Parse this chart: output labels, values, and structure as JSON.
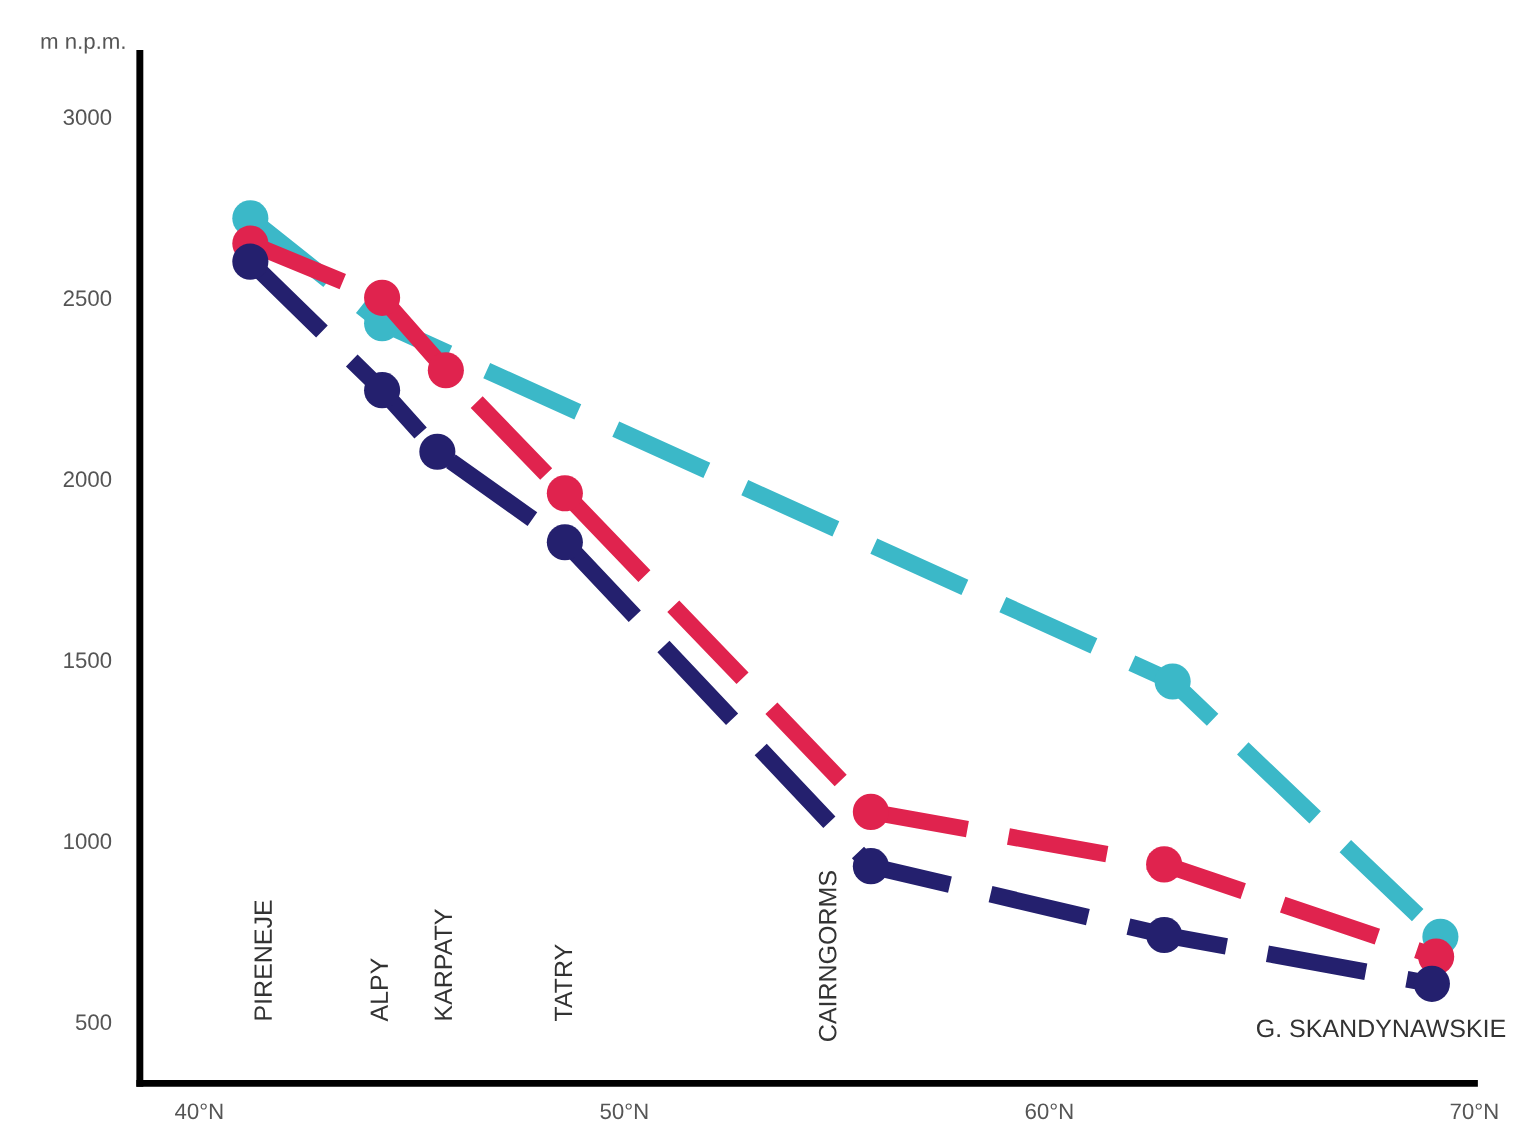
{
  "chart_data": {
    "type": "line",
    "ylabel": "m n.p.m.",
    "xlim": [
      38.6,
      70
    ],
    "xticks": [
      {
        "value": 40,
        "label": "40°N"
      },
      {
        "value": 50,
        "label": "50°N"
      },
      {
        "value": 60,
        "label": "60°N"
      },
      {
        "value": 70,
        "label": "70°N"
      }
    ],
    "ylim": [
      330,
      3175
    ],
    "yticks": [
      500,
      1000,
      1500,
      2000,
      2500,
      3000
    ],
    "grid": false,
    "marker": "circle",
    "line_style": "dashed",
    "series": [
      {
        "color": "#3bb8c8",
        "x": [
          41.2,
          44.3,
          62.9,
          69.2
        ],
        "values": [
          2720,
          2430,
          1440,
          735
        ]
      },
      {
        "color": "#e0234e",
        "x": [
          41.2,
          44.3,
          45.8,
          48.6,
          55.8,
          62.7,
          69.1
        ],
        "values": [
          2650,
          2500,
          2300,
          1960,
          1080,
          935,
          680
        ]
      },
      {
        "color": "#24206e",
        "x": [
          41.2,
          44.3,
          45.6,
          48.6,
          55.8,
          62.7,
          69.0
        ],
        "values": [
          2600,
          2245,
          2075,
          1825,
          930,
          740,
          605
        ]
      }
    ],
    "annotations": [
      "PIRENEJE",
      "ALPY",
      "KARPATY",
      "TATRY",
      "CAIRNGORMS",
      "G. SKANDYNAWSKIE"
    ]
  }
}
